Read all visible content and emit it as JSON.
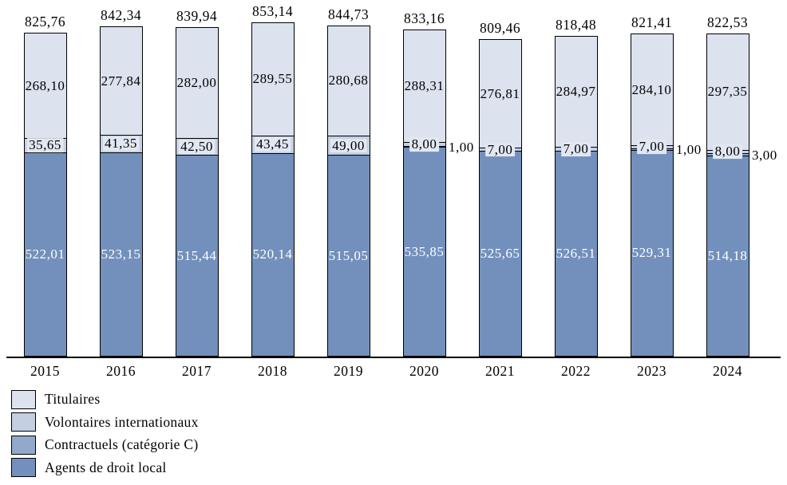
{
  "chart_data": {
    "type": "bar",
    "stacked": true,
    "title": "",
    "xlabel": "",
    "ylabel": "",
    "grid": false,
    "legend_position": "bottom-left",
    "number_format": "comma-decimal-2",
    "categories": [
      "2015",
      "2016",
      "2017",
      "2018",
      "2019",
      "2020",
      "2021",
      "2022",
      "2023",
      "2024"
    ],
    "series": [
      {
        "name": "Titulaires",
        "color": "#dce2ee",
        "values": [
          268.1,
          277.84,
          282.0,
          289.55,
          280.68,
          288.31,
          276.81,
          284.97,
          284.1,
          297.35
        ]
      },
      {
        "name": "Volontaires internationaux",
        "color": "#c4cfe2",
        "values": [
          35.65,
          41.35,
          42.5,
          43.45,
          49.0,
          8.0,
          7.0,
          7.0,
          7.0,
          8.0
        ]
      },
      {
        "name": "Contractuels (catégorie C)",
        "color": "#92a9cc",
        "values": [
          0,
          0,
          0,
          0,
          0,
          1.0,
          0,
          0,
          1.0,
          3.0
        ]
      },
      {
        "name": "Agents de droit local",
        "color": "#7290bb",
        "values": [
          522.01,
          523.15,
          515.44,
          520.14,
          515.05,
          535.85,
          525.65,
          526.51,
          529.31,
          514.18
        ]
      }
    ],
    "totals": [
      825.76,
      842.34,
      839.94,
      853.14,
      844.73,
      833.16,
      809.46,
      818.48,
      821.41,
      822.53
    ],
    "label_colors": {
      "border": "#000000",
      "inside_dark_text": "#000000",
      "inside_light_text": "#ffffff"
    }
  }
}
